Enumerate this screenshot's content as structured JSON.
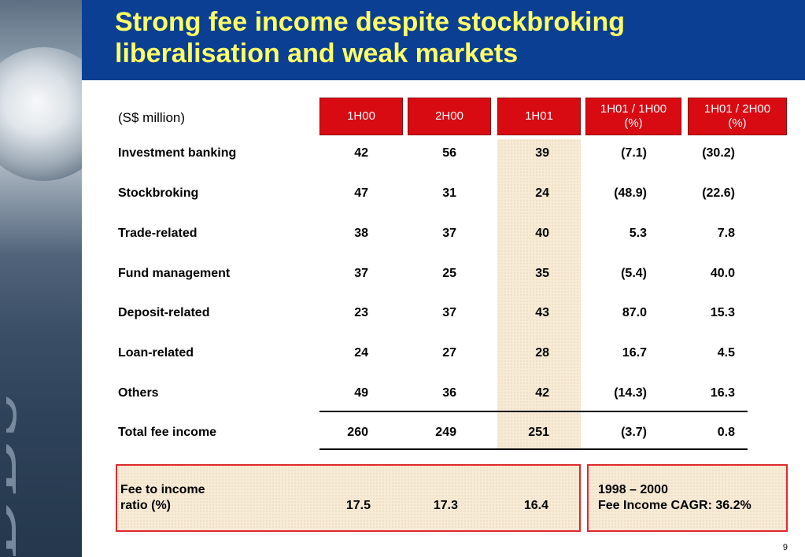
{
  "title": "Strong fee income despite stockbroking liberalisation and weak markets",
  "unit_label": "(S$ million)",
  "columns": [
    {
      "line1": "1H00",
      "line2": ""
    },
    {
      "line1": "2H00",
      "line2": ""
    },
    {
      "line1": "1H01",
      "line2": ""
    },
    {
      "line1": "1H01 / 1H00",
      "line2": "(%)"
    },
    {
      "line1": "1H01 / 2H00",
      "line2": "(%)"
    }
  ],
  "rows": [
    {
      "label": "Investment banking",
      "values": [
        "42",
        "56",
        "39",
        "(7.1)",
        "(30.2)"
      ]
    },
    {
      "label": "Stockbroking",
      "values": [
        "47",
        "31",
        "24",
        "(48.9)",
        "(22.6)"
      ]
    },
    {
      "label": "Trade-related",
      "values": [
        "38",
        "37",
        "40",
        "5.3",
        "7.8"
      ]
    },
    {
      "label": "Fund management",
      "values": [
        "37",
        "25",
        "35",
        "(5.4)",
        "40.0"
      ]
    },
    {
      "label": "Deposit-related",
      "values": [
        "23",
        "37",
        "43",
        "87.0",
        "15.3"
      ]
    },
    {
      "label": "Loan-related",
      "values": [
        "24",
        "27",
        "28",
        "16.7",
        "4.5"
      ]
    },
    {
      "label": "Others",
      "values": [
        "49",
        "36",
        "42",
        "(14.3)",
        "16.3"
      ]
    }
  ],
  "total": {
    "label": "Total fee income",
    "values": [
      "260",
      "249",
      "251",
      "(3.7)",
      "0.8"
    ]
  },
  "fee_ratio": {
    "line1": "Fee to income",
    "line2": "ratio (%)",
    "values": [
      "17.5",
      "17.3",
      "16.4"
    ]
  },
  "cagr": {
    "line1": "1998 – 2000",
    "line2": "Fee Income CAGR: 36.2%"
  },
  "page_number": "9",
  "colors": {
    "title_bar": "#0b3f93",
    "title_text": "#ffff66",
    "header_red": "#d80a12",
    "highlight": "#f7ebd6"
  }
}
